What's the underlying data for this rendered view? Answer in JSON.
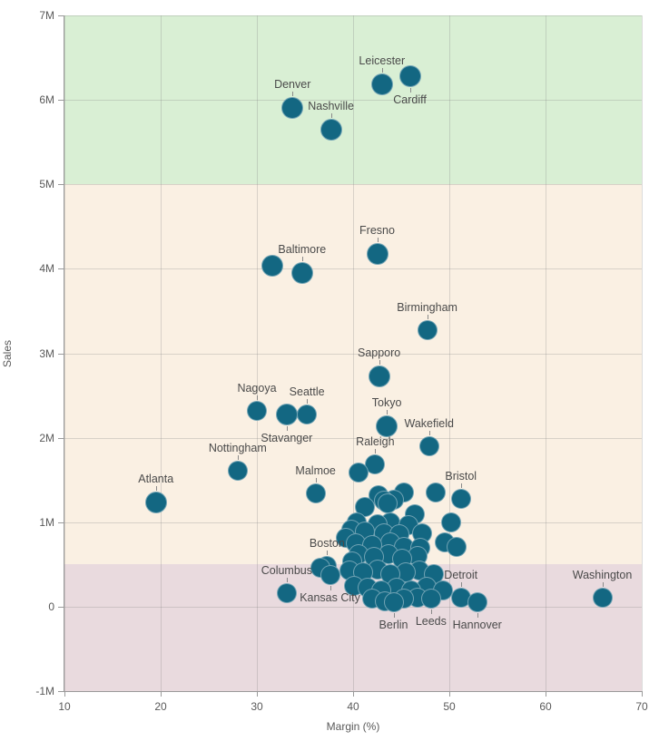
{
  "chart_data": {
    "type": "scatter",
    "title": "",
    "xlabel": "Margin (%)",
    "ylabel": "Sales",
    "xlim": [
      10,
      70
    ],
    "ylim_millions": [
      -1,
      7
    ],
    "grid": true,
    "x_ticks": [
      10,
      20,
      30,
      40,
      50,
      60,
      70
    ],
    "y_ticks": [
      {
        "v": -1,
        "label": "-1M"
      },
      {
        "v": 0,
        "label": "0"
      },
      {
        "v": 1,
        "label": "1M"
      },
      {
        "v": 2,
        "label": "2M"
      },
      {
        "v": 3,
        "label": "3M"
      },
      {
        "v": 4,
        "label": "4M"
      },
      {
        "v": 5,
        "label": "5M"
      },
      {
        "v": 6,
        "label": "6M"
      },
      {
        "v": 7,
        "label": "7M"
      }
    ],
    "colors": {
      "point": "#136782",
      "band_high": "#d9efd4",
      "band_mid": "#faf0e3",
      "band_low": "#e9dade",
      "axis_text": "#595959",
      "label_text": "#4a4a4a"
    },
    "reference_bands": [
      {
        "name": "high",
        "from_millions": 5,
        "to_millions": 7,
        "color": "#d9efd4"
      },
      {
        "name": "mid",
        "from_millions": 0.5,
        "to_millions": 5,
        "color": "#faf0e3"
      },
      {
        "name": "low",
        "from_millions": -1,
        "to_millions": 0.5,
        "color": "#e9dade"
      }
    ],
    "points": [
      {
        "city": "Leicester",
        "margin_pct": 43.0,
        "sales_millions": 6.18,
        "label": "above",
        "r": 12
      },
      {
        "city": "Cardiff",
        "margin_pct": 45.9,
        "sales_millions": 6.28,
        "label": "below",
        "r": 12
      },
      {
        "city": "Denver",
        "margin_pct": 33.7,
        "sales_millions": 5.91,
        "label": "above",
        "r": 12
      },
      {
        "city": "Nashville",
        "margin_pct": 37.7,
        "sales_millions": 5.65,
        "label": "above",
        "r": 12
      },
      {
        "city": "Fresno",
        "margin_pct": 42.5,
        "sales_millions": 4.18,
        "label": "above",
        "r": 12
      },
      {
        "city": "Baltimore",
        "margin_pct": 34.7,
        "sales_millions": 3.95,
        "label": "above",
        "r": 12
      },
      {
        "city": "Birmingham",
        "margin_pct": 47.7,
        "sales_millions": 3.27,
        "label": "above",
        "r": 11
      },
      {
        "city": "Sapporo",
        "margin_pct": 42.7,
        "sales_millions": 2.73,
        "label": "above",
        "r": 12
      },
      {
        "city": "Nagoya",
        "margin_pct": 30.0,
        "sales_millions": 2.32,
        "label": "above",
        "r": 11
      },
      {
        "city": "Seattle",
        "margin_pct": 35.2,
        "sales_millions": 2.28,
        "label": "above",
        "r": 11
      },
      {
        "city": "Stavanger",
        "margin_pct": 33.1,
        "sales_millions": 2.27,
        "label": "below",
        "r": 12
      },
      {
        "city": "Tokyo",
        "margin_pct": 43.5,
        "sales_millions": 2.14,
        "label": "above",
        "r": 12
      },
      {
        "city": "Wakefield",
        "margin_pct": 47.9,
        "sales_millions": 1.9,
        "label": "above",
        "r": 11
      },
      {
        "city": "Nottingham",
        "margin_pct": 28.0,
        "sales_millions": 1.61,
        "label": "above",
        "r": 11
      },
      {
        "city": "Raleigh",
        "margin_pct": 42.3,
        "sales_millions": 1.68,
        "label": "above",
        "r": 11
      },
      {
        "city": "Malmoe",
        "margin_pct": 36.1,
        "sales_millions": 1.34,
        "label": "above",
        "r": 11
      },
      {
        "city": "Atlanta",
        "margin_pct": 19.5,
        "sales_millions": 1.23,
        "label": "above",
        "r": 12
      },
      {
        "city": "Bristol",
        "margin_pct": 51.2,
        "sales_millions": 1.28,
        "label": "above",
        "r": 11
      },
      {
        "city": "Boston",
        "margin_pct": 37.3,
        "sales_millions": 0.48,
        "label": "above",
        "r": 11
      },
      {
        "city": "Columbus",
        "margin_pct": 33.1,
        "sales_millions": 0.16,
        "label": "above",
        "r": 11
      },
      {
        "city": "Kansas City",
        "margin_pct": 37.6,
        "sales_millions": 0.37,
        "label": "below",
        "r": 11
      },
      {
        "city": "Berlin",
        "margin_pct": 44.2,
        "sales_millions": 0.05,
        "label": "below",
        "r": 11
      },
      {
        "city": "Leeds",
        "margin_pct": 48.1,
        "sales_millions": 0.09,
        "label": "below",
        "r": 11
      },
      {
        "city": "Hannover",
        "margin_pct": 52.9,
        "sales_millions": 0.05,
        "label": "below",
        "r": 11
      },
      {
        "city": "Detroit",
        "margin_pct": 51.2,
        "sales_millions": 0.11,
        "label": "above",
        "r": 11
      },
      {
        "city": "Washington",
        "margin_pct": 65.9,
        "sales_millions": 0.11,
        "label": "above",
        "r": 11
      },
      {
        "city": null,
        "margin_pct": 31.6,
        "sales_millions": 4.04,
        "label": null,
        "r": 12
      },
      {
        "city": null,
        "margin_pct": 40.6,
        "sales_millions": 1.59,
        "label": null,
        "r": 11
      },
      {
        "city": null,
        "margin_pct": 42.6,
        "sales_millions": 1.32,
        "label": null,
        "r": 11
      },
      {
        "city": null,
        "margin_pct": 45.3,
        "sales_millions": 1.35,
        "label": null,
        "r": 11
      },
      {
        "city": null,
        "margin_pct": 48.6,
        "sales_millions": 1.35,
        "label": null,
        "r": 11
      },
      {
        "city": null,
        "margin_pct": 44.2,
        "sales_millions": 1.27,
        "label": null,
        "r": 11
      },
      {
        "city": null,
        "margin_pct": 43.2,
        "sales_millions": 1.25,
        "label": null,
        "r": 11
      },
      {
        "city": null,
        "margin_pct": 43.6,
        "sales_millions": 1.22,
        "label": null,
        "r": 11
      },
      {
        "city": null,
        "margin_pct": 41.2,
        "sales_millions": 1.18,
        "label": null,
        "r": 11
      },
      {
        "city": null,
        "margin_pct": 46.4,
        "sales_millions": 1.09,
        "label": null,
        "r": 11
      },
      {
        "city": null,
        "margin_pct": 50.2,
        "sales_millions": 1.0,
        "label": null,
        "r": 11
      },
      {
        "city": null,
        "margin_pct": 40.4,
        "sales_millions": 1.0,
        "label": null,
        "r": 11
      },
      {
        "city": null,
        "margin_pct": 43.9,
        "sales_millions": 1.0,
        "label": null,
        "r": 11
      },
      {
        "city": null,
        "margin_pct": 42.5,
        "sales_millions": 0.98,
        "label": null,
        "r": 11
      },
      {
        "city": null,
        "margin_pct": 45.8,
        "sales_millions": 0.97,
        "label": null,
        "r": 11
      },
      {
        "city": null,
        "margin_pct": 39.8,
        "sales_millions": 0.91,
        "label": null,
        "r": 11
      },
      {
        "city": null,
        "margin_pct": 41.2,
        "sales_millions": 0.89,
        "label": null,
        "r": 11
      },
      {
        "city": null,
        "margin_pct": 43.2,
        "sales_millions": 0.87,
        "label": null,
        "r": 11
      },
      {
        "city": null,
        "margin_pct": 47.2,
        "sales_millions": 0.87,
        "label": null,
        "r": 11
      },
      {
        "city": null,
        "margin_pct": 44.8,
        "sales_millions": 0.86,
        "label": null,
        "r": 11
      },
      {
        "city": null,
        "margin_pct": 39.2,
        "sales_millions": 0.81,
        "label": null,
        "r": 11
      },
      {
        "city": null,
        "margin_pct": 43.9,
        "sales_millions": 0.76,
        "label": null,
        "r": 11
      },
      {
        "city": null,
        "margin_pct": 49.5,
        "sales_millions": 0.76,
        "label": null,
        "r": 11
      },
      {
        "city": null,
        "margin_pct": 40.3,
        "sales_millions": 0.75,
        "label": null,
        "r": 11
      },
      {
        "city": null,
        "margin_pct": 42.0,
        "sales_millions": 0.73,
        "label": null,
        "r": 11
      },
      {
        "city": null,
        "margin_pct": 45.3,
        "sales_millions": 0.71,
        "label": null,
        "r": 11
      },
      {
        "city": null,
        "margin_pct": 50.8,
        "sales_millions": 0.71,
        "label": null,
        "r": 11
      },
      {
        "city": null,
        "margin_pct": 47.0,
        "sales_millions": 0.7,
        "label": null,
        "r": 11
      },
      {
        "city": null,
        "margin_pct": 40.6,
        "sales_millions": 0.62,
        "label": null,
        "r": 11
      },
      {
        "city": null,
        "margin_pct": 43.7,
        "sales_millions": 0.62,
        "label": null,
        "r": 11
      },
      {
        "city": null,
        "margin_pct": 46.7,
        "sales_millions": 0.6,
        "label": null,
        "r": 11
      },
      {
        "city": null,
        "margin_pct": 42.2,
        "sales_millions": 0.59,
        "label": null,
        "r": 11
      },
      {
        "city": null,
        "margin_pct": 45.1,
        "sales_millions": 0.57,
        "label": null,
        "r": 11
      },
      {
        "city": null,
        "margin_pct": 39.9,
        "sales_millions": 0.54,
        "label": null,
        "r": 11
      },
      {
        "city": null,
        "margin_pct": 36.6,
        "sales_millions": 0.46,
        "label": null,
        "r": 11
      },
      {
        "city": null,
        "margin_pct": 42.5,
        "sales_millions": 0.44,
        "label": null,
        "r": 11
      },
      {
        "city": null,
        "margin_pct": 39.6,
        "sales_millions": 0.43,
        "label": null,
        "r": 11
      },
      {
        "city": null,
        "margin_pct": 46.9,
        "sales_millions": 0.43,
        "label": null,
        "r": 11
      },
      {
        "city": null,
        "margin_pct": 41.0,
        "sales_millions": 0.41,
        "label": null,
        "r": 11
      },
      {
        "city": null,
        "margin_pct": 45.5,
        "sales_millions": 0.41,
        "label": null,
        "r": 11
      },
      {
        "city": null,
        "margin_pct": 43.9,
        "sales_millions": 0.39,
        "label": null,
        "r": 11
      },
      {
        "city": null,
        "margin_pct": 48.4,
        "sales_millions": 0.39,
        "label": null,
        "r": 11
      },
      {
        "city": null,
        "margin_pct": 40.1,
        "sales_millions": 0.25,
        "label": null,
        "r": 11
      },
      {
        "city": null,
        "margin_pct": 47.6,
        "sales_millions": 0.23,
        "label": null,
        "r": 11
      },
      {
        "city": null,
        "margin_pct": 41.5,
        "sales_millions": 0.22,
        "label": null,
        "r": 11
      },
      {
        "city": null,
        "margin_pct": 44.5,
        "sales_millions": 0.22,
        "label": null,
        "r": 11
      },
      {
        "city": null,
        "margin_pct": 42.9,
        "sales_millions": 0.19,
        "label": null,
        "r": 11
      },
      {
        "city": null,
        "margin_pct": 46.0,
        "sales_millions": 0.19,
        "label": null,
        "r": 11
      },
      {
        "city": null,
        "margin_pct": 49.3,
        "sales_millions": 0.19,
        "label": null,
        "r": 11
      },
      {
        "city": null,
        "margin_pct": 42.0,
        "sales_millions": 0.09,
        "label": null,
        "r": 11
      },
      {
        "city": null,
        "margin_pct": 45.3,
        "sales_millions": 0.09,
        "label": null,
        "r": 11
      },
      {
        "city": null,
        "margin_pct": 46.7,
        "sales_millions": 0.11,
        "label": null,
        "r": 11
      },
      {
        "city": null,
        "margin_pct": 43.3,
        "sales_millions": 0.06,
        "label": null,
        "r": 11
      }
    ]
  }
}
